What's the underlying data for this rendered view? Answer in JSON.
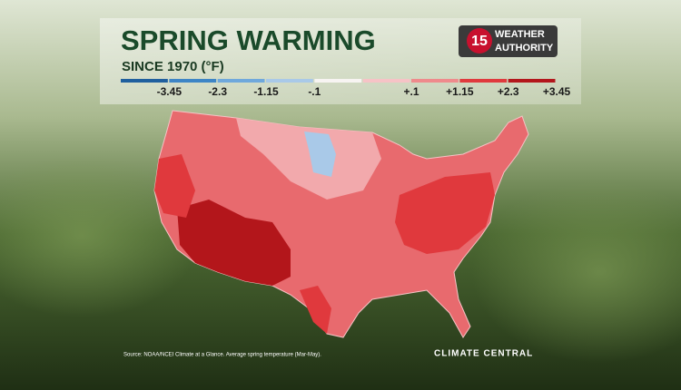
{
  "title": "SPRING WARMING",
  "subtitle": "SINCE 1970 (°F)",
  "logo": {
    "number": "15",
    "line1": "WEATHER",
    "line2": "AUTHORITY"
  },
  "legend": {
    "colors": [
      "#1f5f9e",
      "#3d85c6",
      "#6fa8dc",
      "#a9c9e8",
      "#f7f4f2",
      "#f6c3c6",
      "#ef8a8c",
      "#e0393d",
      "#b3161b"
    ],
    "labels": [
      "-3.45",
      "-2.3",
      "-1.15",
      "-.1",
      "+.1",
      "+1.15",
      "+2.3",
      "+3.45"
    ]
  },
  "source": "Source: NOAA/NCEI Climate at a Glance. Average spring temperature (Mar-May).",
  "brand": "CLIMATE CENTRAL"
}
